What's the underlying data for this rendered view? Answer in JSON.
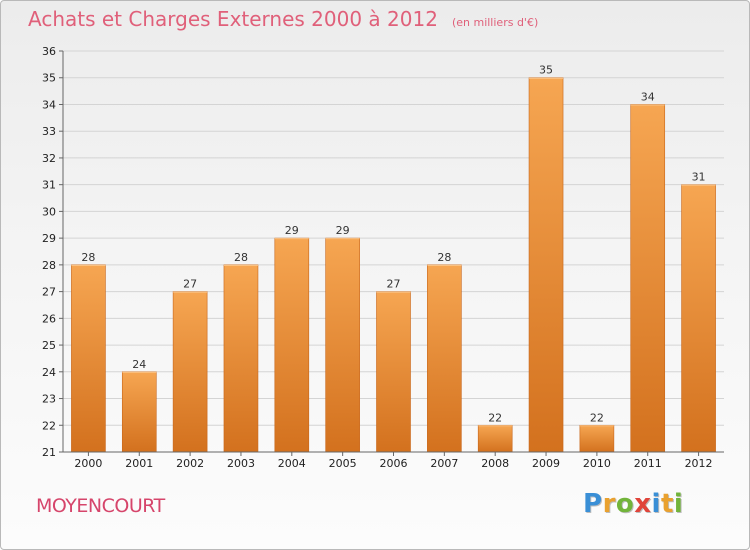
{
  "header": {
    "title": "Achats et Charges Externes 2000 à 2012",
    "unit": "(en milliers d'€)"
  },
  "footer": {
    "town": "MOYENCOURT",
    "logo": [
      {
        "ch": "P",
        "color": "#3a8fd6"
      },
      {
        "ch": "r",
        "color": "#e9a12f"
      },
      {
        "ch": "o",
        "color": "#72b43a"
      },
      {
        "ch": "x",
        "color": "#e0443a"
      },
      {
        "ch": "i",
        "color": "#3a8fd6"
      },
      {
        "ch": "t",
        "color": "#e9a12f"
      },
      {
        "ch": "i",
        "color": "#72b43a"
      }
    ]
  },
  "chart_data": {
    "type": "bar",
    "title": "Achats et Charges Externes 2000 à 2012",
    "unit": "(en milliers d'€)",
    "categories": [
      "2000",
      "2001",
      "2002",
      "2003",
      "2004",
      "2005",
      "2006",
      "2007",
      "2008",
      "2009",
      "2010",
      "2011",
      "2012"
    ],
    "values": [
      28,
      24,
      27,
      28,
      29,
      29,
      27,
      28,
      22,
      35,
      22,
      34,
      31
    ],
    "ylim": [
      21,
      36
    ],
    "yticks": [
      21,
      22,
      23,
      24,
      25,
      26,
      27,
      28,
      29,
      30,
      31,
      32,
      33,
      34,
      35,
      36
    ],
    "grid": true,
    "bar_color": "#f09a45"
  }
}
